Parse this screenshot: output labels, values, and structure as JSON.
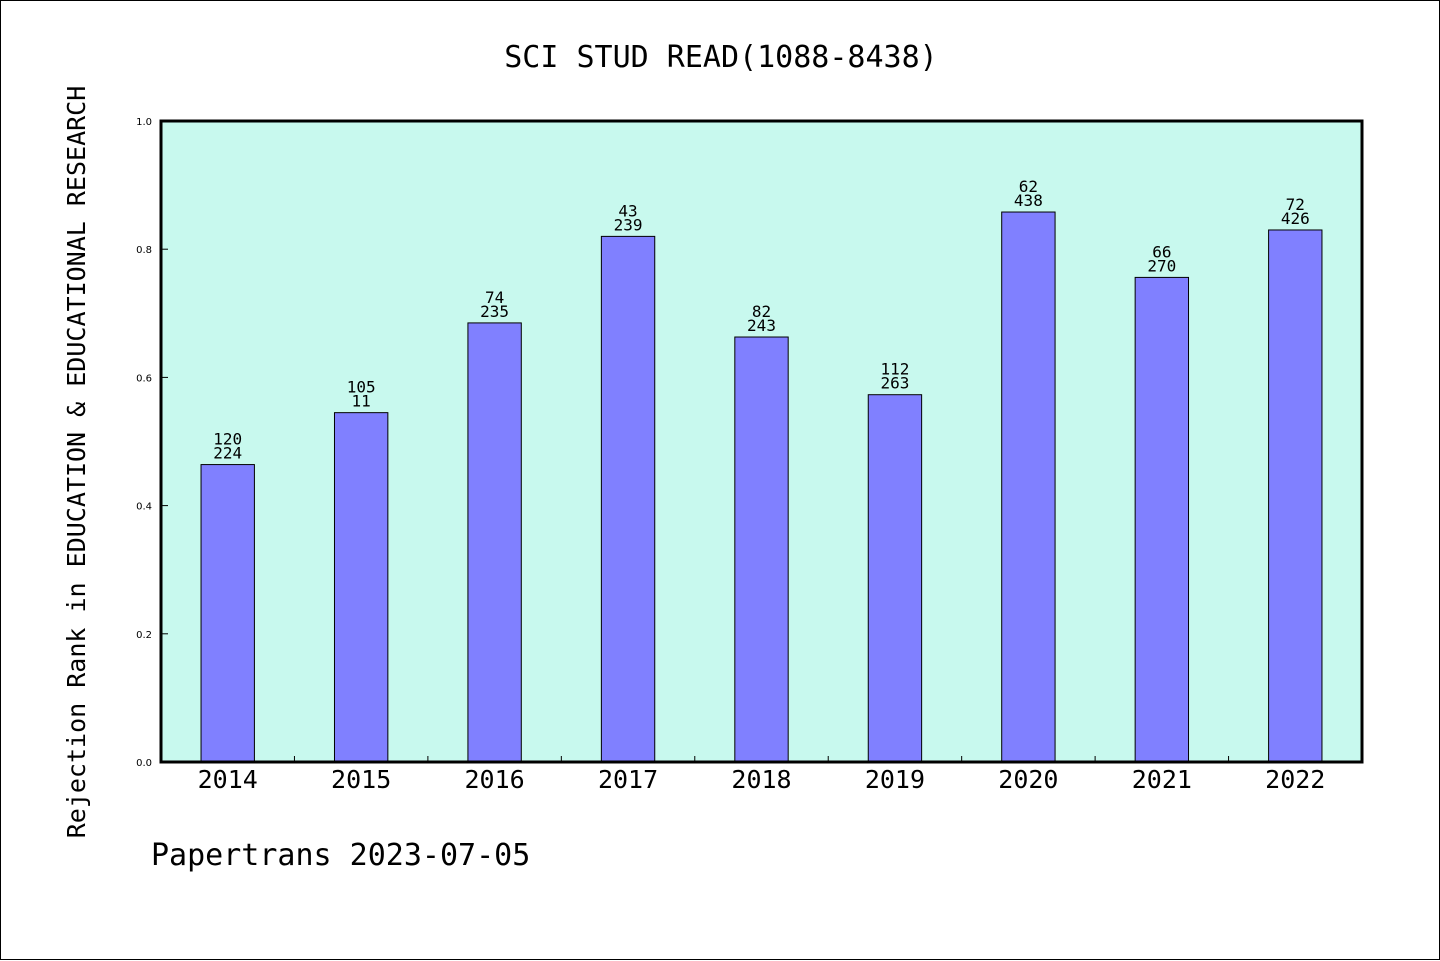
{
  "chart_data": {
    "type": "bar",
    "title": "SCI STUD READ(1088-8438)",
    "xlabel": "",
    "ylabel": "Rejection Rank in EDUCATION & EDUCATIONAL RESEARCH",
    "ylim": [
      0,
      1.0
    ],
    "yticks": [
      "0.0",
      "0.2",
      "0.4",
      "0.6",
      "0.8",
      "1.0"
    ],
    "grid": false,
    "categories": [
      "2014",
      "2015",
      "2016",
      "2017",
      "2018",
      "2019",
      "2020",
      "2021",
      "2022"
    ],
    "values": [
      0.464,
      0.545,
      0.685,
      0.82,
      0.663,
      0.573,
      0.858,
      0.756,
      0.83
    ],
    "bar_labels_top": [
      "120",
      "105",
      "74",
      "43",
      "82",
      "112",
      "62",
      "66",
      "72"
    ],
    "bar_labels_bottom": [
      "224",
      "11",
      "235",
      "239",
      "243",
      "263",
      "438",
      "270",
      "426"
    ],
    "colors": {
      "plot_background": "#c8f9ee",
      "bar_fill": "#8080ff",
      "bar_stroke": "#000000",
      "axis": "#000000"
    }
  },
  "footer": {
    "text": "Papertrans 2023-07-05"
  }
}
